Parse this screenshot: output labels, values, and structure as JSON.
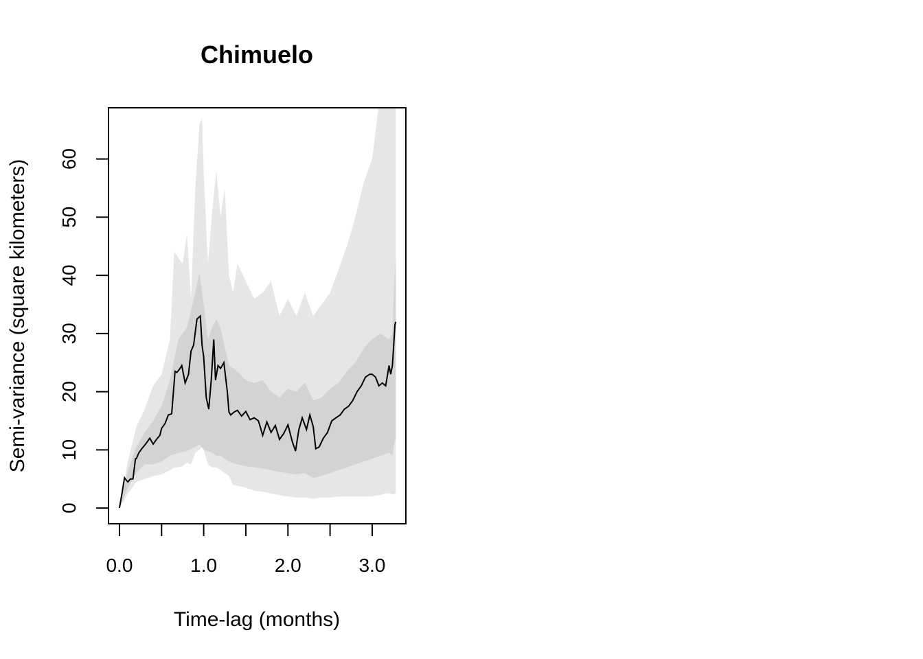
{
  "chart_data": {
    "type": "line",
    "title": "Chimuelo",
    "xlabel": "Time-lag (months)",
    "ylabel": "Semi-variance (square kilometers)",
    "xlim": [
      -0.13,
      3.4
    ],
    "ylim": [
      -2.7,
      68.8
    ],
    "x_ticks": [
      0,
      0.5,
      1.0,
      1.5,
      2.0,
      2.5,
      3.0
    ],
    "x_tick_labels": [
      "0.0",
      "1.0",
      "2.0",
      "3.0"
    ],
    "x_tick_label_values": [
      0,
      1.0,
      2.0,
      3.0
    ],
    "y_ticks": [
      0,
      10,
      20,
      30,
      40,
      50,
      60
    ],
    "y_tick_labels": [
      "0",
      "10",
      "20",
      "30",
      "40",
      "50",
      "60"
    ],
    "grid": false,
    "colors": {
      "outer_band": "#e6e6e6",
      "inner_band": "#d3d3d3",
      "line": "#000000",
      "axis": "#000000"
    },
    "series": [
      {
        "role": "estimate",
        "x": [
          0,
          0.03,
          0.06,
          0.08,
          0.1,
          0.13,
          0.16,
          0.19,
          0.2,
          0.23,
          0.27,
          0.31,
          0.36,
          0.4,
          0.44,
          0.48,
          0.5,
          0.54,
          0.58,
          0.62,
          0.66,
          0.68,
          0.71,
          0.74,
          0.78,
          0.82,
          0.85,
          0.88,
          0.92,
          0.96,
          0.98,
          1.0,
          1.03,
          1.06,
          1.09,
          1.12,
          1.14,
          1.17,
          1.2,
          1.24,
          1.28,
          1.3,
          1.32,
          1.36,
          1.4,
          1.45,
          1.5,
          1.55,
          1.6,
          1.65,
          1.7,
          1.75,
          1.8,
          1.85,
          1.9,
          1.95,
          2.0,
          2.05,
          2.09,
          2.13,
          2.17,
          2.22,
          2.26,
          2.3,
          2.33,
          2.37,
          2.42,
          2.47,
          2.52,
          2.57,
          2.62,
          2.67,
          2.72,
          2.77,
          2.82,
          2.87,
          2.92,
          2.97,
          3.0,
          3.04,
          3.08,
          3.12,
          3.16,
          3.2,
          3.22,
          3.24,
          3.26,
          3.27,
          3.28
        ],
        "y": [
          0,
          2.5,
          5.2,
          4.8,
          4.5,
          5.0,
          5.0,
          8.5,
          8.5,
          9.5,
          10.3,
          11.0,
          12.0,
          11.0,
          11.8,
          12.5,
          13.7,
          14.5,
          16.0,
          16.2,
          23.5,
          23.3,
          23.8,
          24.5,
          21.5,
          23.0,
          27.0,
          28.0,
          32.5,
          33.0,
          28.0,
          26.0,
          19.0,
          17.0,
          22.0,
          29.0,
          22.0,
          24.5,
          24.0,
          25.0,
          20.0,
          16.5,
          16.0,
          16.5,
          16.8,
          15.8,
          16.6,
          15.2,
          15.5,
          15.0,
          12.5,
          14.8,
          13.0,
          14.2,
          11.8,
          12.8,
          14.3,
          11.5,
          9.8,
          13.5,
          15.5,
          13.5,
          16.0,
          14.0,
          10.2,
          10.5,
          12.0,
          13.0,
          15.0,
          15.5,
          16.0,
          17.0,
          17.5,
          18.5,
          20.0,
          21.0,
          22.5,
          23.0,
          23.0,
          22.5,
          21.0,
          21.5,
          21.0,
          24.5,
          23.0,
          24.5,
          29.0,
          31.5,
          32.0
        ]
      },
      {
        "role": "inner-band",
        "x": [
          0,
          0.1,
          0.2,
          0.3,
          0.4,
          0.5,
          0.6,
          0.7,
          0.8,
          0.9,
          0.95,
          1.0,
          1.05,
          1.1,
          1.15,
          1.2,
          1.3,
          1.4,
          1.5,
          1.6,
          1.7,
          1.8,
          1.9,
          2.0,
          2.1,
          2.2,
          2.3,
          2.4,
          2.5,
          2.6,
          2.7,
          2.8,
          2.9,
          3.0,
          3.1,
          3.2,
          3.24,
          3.26,
          3.28
        ],
        "upper": [
          0,
          6.5,
          10.5,
          13.0,
          15.0,
          17.5,
          22.0,
          29.0,
          31.0,
          37.0,
          40.5,
          35.0,
          29.0,
          31.0,
          32.5,
          31.0,
          24.5,
          23.5,
          22.0,
          21.5,
          22.0,
          20.0,
          19.0,
          20.5,
          20.0,
          21.5,
          18.5,
          19.0,
          20.5,
          21.5,
          23.5,
          25.0,
          27.5,
          29.0,
          30.0,
          29.0,
          30.0,
          38.0,
          43.0
        ],
        "lower": [
          0,
          3.5,
          6.0,
          7.5,
          7.5,
          8.0,
          9.0,
          9.5,
          9.8,
          10.5,
          11.0,
          10.0,
          9.8,
          9.5,
          9.0,
          9.0,
          8.0,
          7.5,
          7.2,
          7.0,
          6.8,
          6.5,
          6.2,
          6.0,
          5.8,
          6.0,
          5.2,
          5.5,
          6.0,
          6.5,
          7.0,
          7.5,
          8.0,
          8.5,
          9.0,
          9.5,
          9.0,
          11.0,
          12.0
        ]
      },
      {
        "role": "outer-band",
        "x": [
          0,
          0.1,
          0.2,
          0.3,
          0.4,
          0.5,
          0.6,
          0.65,
          0.7,
          0.75,
          0.8,
          0.85,
          0.9,
          0.95,
          0.98,
          1.0,
          1.05,
          1.1,
          1.15,
          1.2,
          1.25,
          1.3,
          1.35,
          1.4,
          1.5,
          1.6,
          1.7,
          1.8,
          1.9,
          2.0,
          2.1,
          2.2,
          2.3,
          2.4,
          2.5,
          2.6,
          2.7,
          2.8,
          2.9,
          3.0,
          3.05,
          3.1,
          3.15,
          3.2,
          3.24,
          3.28
        ],
        "upper": [
          0,
          8.0,
          14.0,
          17.0,
          21.0,
          23.0,
          29.0,
          44.0,
          43.0,
          42.0,
          47.0,
          36.0,
          55.0,
          66.0,
          67.0,
          58.0,
          42.0,
          51.0,
          58.0,
          50.0,
          55.0,
          40.0,
          37.0,
          42.0,
          39.0,
          36.0,
          37.0,
          39.0,
          33.0,
          36.0,
          33.0,
          37.0,
          33.0,
          35.0,
          37.0,
          41.0,
          45.0,
          50.0,
          56.0,
          60.0,
          66.0,
          72.0,
          70.0,
          74.0,
          72.0,
          70.0
        ],
        "lower": [
          0,
          2.5,
          4.5,
          5.0,
          5.5,
          5.8,
          6.5,
          7.0,
          7.0,
          7.2,
          7.8,
          7.5,
          9.5,
          10.0,
          10.5,
          10.0,
          7.5,
          7.0,
          7.0,
          6.5,
          6.0,
          5.5,
          4.0,
          3.8,
          3.5,
          3.0,
          2.8,
          2.5,
          2.2,
          2.0,
          1.8,
          1.8,
          1.6,
          1.8,
          1.8,
          2.0,
          2.0,
          2.0,
          2.0,
          2.0,
          2.2,
          2.2,
          2.5,
          2.5,
          2.3,
          2.5
        ]
      }
    ]
  }
}
